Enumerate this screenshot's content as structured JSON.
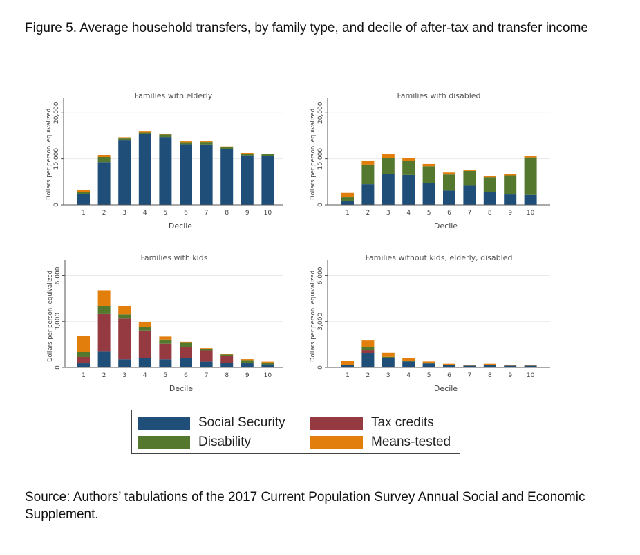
{
  "figure": {
    "title": "Figure 5. Average household transfers, by family type, and decile of after-tax and transfer income",
    "source": "Source: Authors’ tabulations of the 2017 Current Population Survey Annual Social and Economic Supplement."
  },
  "colors": {
    "social_security": "#1f4e79",
    "tax_credits": "#953a41",
    "disability": "#55782f",
    "means_tested": "#e27f0c",
    "grid": "#eaeaea",
    "axis": "#555555"
  },
  "legend": {
    "items": [
      {
        "key": "social_security",
        "label": "Social Security"
      },
      {
        "key": "tax_credits",
        "label": "Tax credits"
      },
      {
        "key": "disability",
        "label": "Disability"
      },
      {
        "key": "means_tested",
        "label": "Means-tested"
      }
    ],
    "placement": "bottom-center"
  },
  "chart_data": [
    {
      "type": "bar",
      "stacked": true,
      "title": "Families with elderly",
      "xlabel": "Decile",
      "ylabel": "Dollars per person, equivalized",
      "categories": [
        "1",
        "2",
        "3",
        "4",
        "5",
        "6",
        "7",
        "8",
        "9",
        "10"
      ],
      "ylim": [
        0,
        22000
      ],
      "yticks": [
        0,
        10000,
        20000
      ],
      "ytick_labels": [
        "0",
        "10,000",
        "20,000"
      ],
      "grid": true,
      "series": [
        {
          "name": "Social Security",
          "key": "social_security",
          "values": [
            2350,
            9300,
            14000,
            15400,
            14750,
            13200,
            13150,
            12150,
            10750,
            10700
          ]
        },
        {
          "name": "Tax credits",
          "key": "tax_credits",
          "values": [
            0,
            0,
            0,
            0,
            0,
            0,
            0,
            0,
            0,
            0
          ]
        },
        {
          "name": "Disability",
          "key": "disability",
          "values": [
            500,
            1100,
            450,
            350,
            600,
            450,
            550,
            400,
            350,
            300
          ]
        },
        {
          "name": "Means-tested",
          "key": "means_tested",
          "values": [
            400,
            450,
            250,
            200,
            50,
            200,
            150,
            150,
            200,
            150
          ]
        }
      ]
    },
    {
      "type": "bar",
      "stacked": true,
      "title": "Families with disabled",
      "xlabel": "Decile",
      "ylabel": "Dollars per person, equivalized",
      "categories": [
        "1",
        "2",
        "3",
        "4",
        "5",
        "6",
        "7",
        "8",
        "9",
        "10"
      ],
      "ylim": [
        0,
        22000
      ],
      "yticks": [
        0,
        10000,
        20000
      ],
      "ytick_labels": [
        "0",
        "10,000",
        "20,000"
      ],
      "grid": true,
      "series": [
        {
          "name": "Social Security",
          "key": "social_security",
          "values": [
            750,
            4500,
            6650,
            6500,
            4750,
            3100,
            4150,
            2750,
            2250,
            2150
          ]
        },
        {
          "name": "Tax credits",
          "key": "tax_credits",
          "values": [
            0,
            0,
            0,
            0,
            0,
            0,
            0,
            0,
            0,
            0
          ]
        },
        {
          "name": "Disability",
          "key": "disability",
          "values": [
            900,
            4250,
            3550,
            3000,
            3650,
            3500,
            3250,
            3250,
            4150,
            8150
          ]
        },
        {
          "name": "Means-tested",
          "key": "means_tested",
          "values": [
            950,
            900,
            950,
            600,
            500,
            450,
            200,
            250,
            300,
            250
          ]
        }
      ]
    },
    {
      "type": "bar",
      "stacked": true,
      "title": "Families with kids",
      "xlabel": "Decile",
      "ylabel": "Dollars per person, equivalized",
      "categories": [
        "1",
        "2",
        "3",
        "4",
        "5",
        "6",
        "7",
        "8",
        "9",
        "10"
      ],
      "ylim": [
        0,
        6700
      ],
      "yticks": [
        0,
        3000,
        6000
      ],
      "ytick_labels": [
        "0",
        "3,000",
        "6,000"
      ],
      "grid": true,
      "series": [
        {
          "name": "Social Security",
          "key": "social_security",
          "values": [
            270,
            1070,
            530,
            630,
            530,
            620,
            380,
            300,
            270,
            200
          ]
        },
        {
          "name": "Tax credits",
          "key": "tax_credits",
          "values": [
            410,
            2420,
            2670,
            1780,
            1020,
            730,
            730,
            450,
            0,
            0
          ]
        },
        {
          "name": "Disability",
          "key": "disability",
          "values": [
            340,
            540,
            270,
            240,
            270,
            300,
            110,
            90,
            210,
            120
          ]
        },
        {
          "name": "Means-tested",
          "key": "means_tested",
          "values": [
            1060,
            1020,
            560,
            300,
            200,
            30,
            40,
            60,
            60,
            60
          ]
        }
      ]
    },
    {
      "type": "bar",
      "stacked": true,
      "title": "Families without kids, elderly, disabled",
      "xlabel": "Decile",
      "ylabel": "Dollars per person, equivalized",
      "categories": [
        "1",
        "2",
        "3",
        "4",
        "5",
        "6",
        "7",
        "8",
        "9",
        "10"
      ],
      "ylim": [
        0,
        6700
      ],
      "yticks": [
        0,
        3000,
        6000
      ],
      "ytick_labels": [
        "0",
        "3,000",
        "6,000"
      ],
      "grid": true,
      "series": [
        {
          "name": "Social Security",
          "key": "social_security",
          "values": [
            140,
            950,
            620,
            390,
            260,
            150,
            120,
            150,
            120,
            120
          ]
        },
        {
          "name": "Tax credits",
          "key": "tax_credits",
          "values": [
            0,
            180,
            0,
            0,
            0,
            0,
            0,
            0,
            0,
            0
          ]
        },
        {
          "name": "Disability",
          "key": "disability",
          "values": [
            0,
            220,
            70,
            60,
            30,
            0,
            0,
            0,
            0,
            0
          ]
        },
        {
          "name": "Means-tested",
          "key": "means_tested",
          "values": [
            300,
            410,
            270,
            150,
            100,
            90,
            50,
            90,
            30,
            50
          ]
        }
      ]
    }
  ]
}
